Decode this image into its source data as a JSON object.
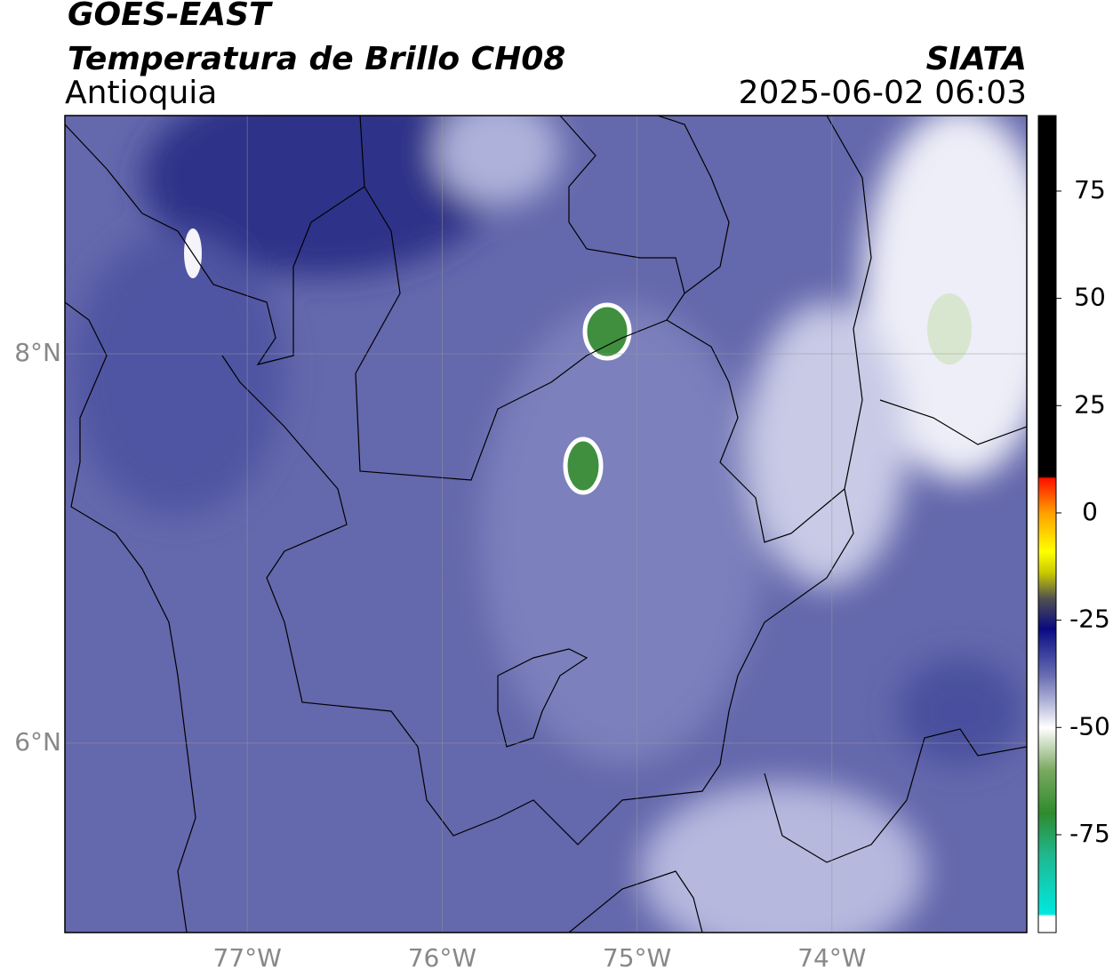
{
  "header": {
    "title": "GOES-EAST",
    "subtitle": "Temperatura de Brillo CH08",
    "region": "Antioquia",
    "source": "SIATA",
    "datetime": "2025-06-02 06:03"
  },
  "map": {
    "xlim": [
      -77.936,
      -73.0
    ],
    "ylim": [
      5.027,
      9.224
    ],
    "xticks": [
      {
        "value": -77,
        "label": "77°W"
      },
      {
        "value": -76,
        "label": "76°W"
      },
      {
        "value": -75,
        "label": "75°W"
      },
      {
        "value": -74,
        "label": "74°W"
      }
    ],
    "yticks": [
      {
        "value": 8,
        "label": "8°N"
      },
      {
        "value": 6,
        "label": "6°N"
      }
    ],
    "grid": true
  },
  "colorbar": {
    "lim": [
      -97.8,
      92.6
    ],
    "ticks": [
      75,
      50,
      25,
      0,
      -25,
      -50,
      -75
    ],
    "colormap": [
      {
        "value": -97.8,
        "color": "#ffffff"
      },
      {
        "value": -94,
        "color": "#ffffff"
      },
      {
        "value": -93.5,
        "color": "#00e8e0"
      },
      {
        "value": -80,
        "color": "#20b890"
      },
      {
        "value": -70,
        "color": "#2e8b2e"
      },
      {
        "value": -60,
        "color": "#7aa860"
      },
      {
        "value": -53,
        "color": "#d8e4d0"
      },
      {
        "value": -50,
        "color": "#ffffff"
      },
      {
        "value": -44,
        "color": "#b0b4d8"
      },
      {
        "value": -38,
        "color": "#6a6eb0"
      },
      {
        "value": -32,
        "color": "#33399a"
      },
      {
        "value": -27,
        "color": "#0a0a80"
      },
      {
        "value": -20,
        "color": "#505050"
      },
      {
        "value": -14,
        "color": "#c8c800"
      },
      {
        "value": -9,
        "color": "#ffff00"
      },
      {
        "value": 0,
        "color": "#ffa000"
      },
      {
        "value": 8,
        "color": "#ff1000"
      },
      {
        "value": 8.5,
        "color": "#000000"
      },
      {
        "value": 92.6,
        "color": "#000000"
      }
    ]
  }
}
